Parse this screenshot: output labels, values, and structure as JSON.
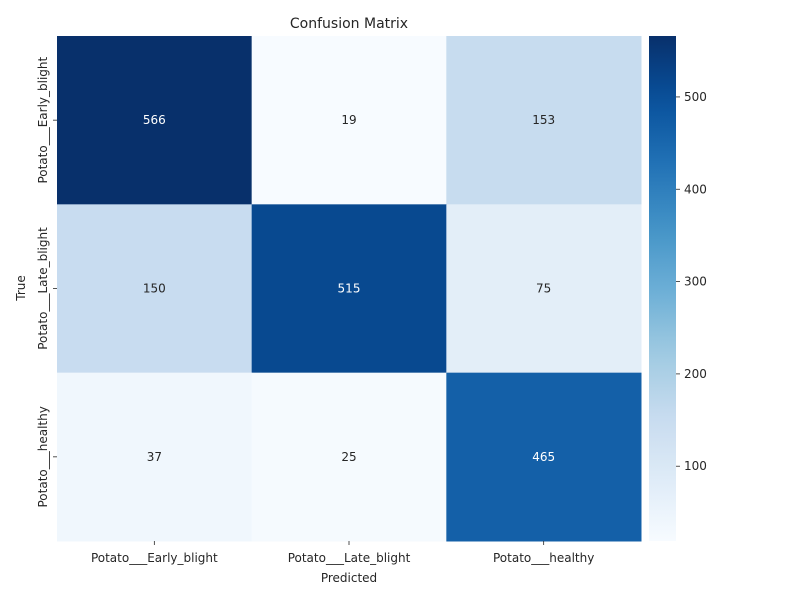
{
  "chart_data": {
    "type": "heatmap",
    "title": "Confusion Matrix",
    "xlabel": "Predicted",
    "ylabel": "True",
    "x_categories": [
      "Potato___Early_blight",
      "Potato___Late_blight",
      "Potato___healthy"
    ],
    "y_categories": [
      "Potato___Early_blight",
      "Potato___Late_blight",
      "Potato___healthy"
    ],
    "matrix": [
      [
        566,
        19,
        153
      ],
      [
        150,
        515,
        75
      ],
      [
        37,
        25,
        465
      ]
    ],
    "colormap": "Blues",
    "color_range": [
      19,
      566
    ],
    "colorbar_ticks": [
      100,
      200,
      300,
      400,
      500
    ],
    "cell_annotations": true,
    "grid": false
  }
}
